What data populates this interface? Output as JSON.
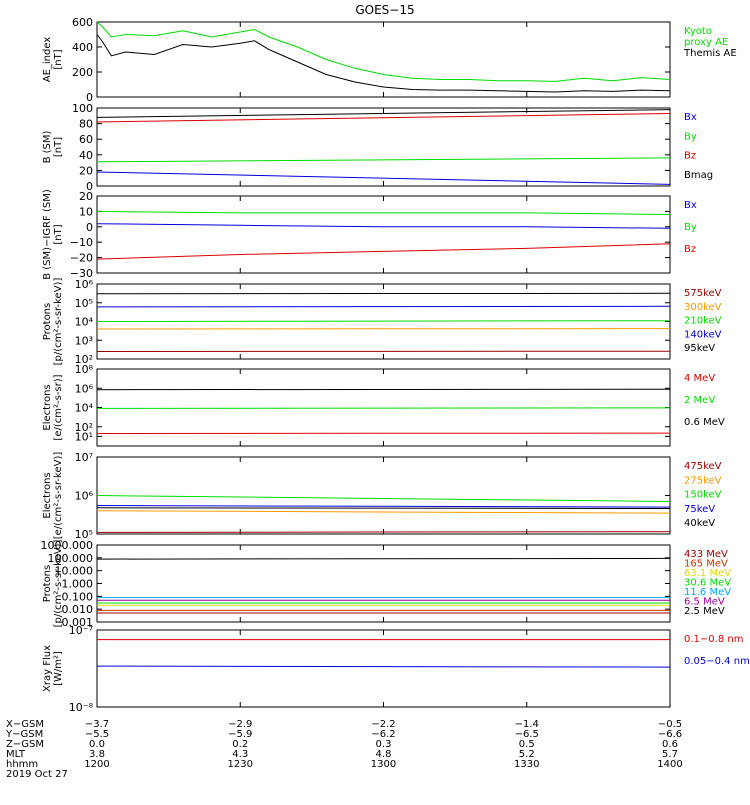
{
  "title": "GOES−15",
  "colors": {
    "black": "#000000",
    "green": "#00dd00",
    "red": "#dd0000",
    "blue": "#0000dd",
    "orange": "#ff9900",
    "yellow": "#dddd00",
    "cyan": "#00aaff",
    "purple": "#990099",
    "darkred": "#990000",
    "brown": "#cc3300"
  },
  "chart_data": [
    {
      "type": "line",
      "ylabel": "AE_index\n[nT]",
      "yscale": "linear",
      "ylim": [
        0,
        600
      ],
      "yticks": [
        "0",
        "200",
        "400",
        "600"
      ],
      "yticks_values": [
        0,
        200,
        400,
        600
      ],
      "series": [
        {
          "name": "Kyoto\nproxy AE",
          "color": "green",
          "x": [
            0,
            2,
            5,
            10,
            20,
            30,
            40,
            50,
            55,
            60,
            70,
            80,
            90,
            100,
            110,
            120,
            130,
            140,
            150,
            160,
            170,
            180,
            190,
            200
          ],
          "y": [
            600,
            560,
            480,
            500,
            490,
            530,
            480,
            520,
            540,
            480,
            400,
            300,
            230,
            180,
            150,
            140,
            140,
            130,
            130,
            125,
            150,
            130,
            155,
            140
          ]
        },
        {
          "name": "Themis AE",
          "color": "black",
          "x": [
            0,
            2,
            5,
            10,
            20,
            30,
            40,
            50,
            55,
            60,
            70,
            80,
            90,
            100,
            110,
            120,
            130,
            140,
            150,
            160,
            170,
            180,
            190,
            200
          ],
          "y": [
            500,
            440,
            330,
            360,
            340,
            420,
            400,
            430,
            450,
            380,
            280,
            180,
            120,
            80,
            60,
            55,
            55,
            50,
            45,
            40,
            50,
            45,
            55,
            50
          ]
        }
      ]
    },
    {
      "type": "line",
      "ylabel": "B (SM)\n[nT]",
      "yscale": "linear",
      "ylim": [
        0,
        100
      ],
      "yticks": [
        "0",
        "20",
        "40",
        "60",
        "80",
        "100"
      ],
      "yticks_values": [
        0,
        20,
        40,
        60,
        80,
        100
      ],
      "series": [
        {
          "name": "Bx",
          "color": "blue",
          "x": [
            0,
            200
          ],
          "y": [
            18,
            2
          ]
        },
        {
          "name": "By",
          "color": "green",
          "x": [
            0,
            200
          ],
          "y": [
            31,
            36
          ]
        },
        {
          "name": "Bz",
          "color": "red",
          "x": [
            0,
            200
          ],
          "y": [
            82,
            93
          ]
        },
        {
          "name": "Bmag",
          "color": "black",
          "x": [
            0,
            200
          ],
          "y": [
            88,
            98
          ]
        }
      ]
    },
    {
      "type": "line",
      "ylabel": "B (SM)−IGRF (SM)\n[nT]",
      "yscale": "linear",
      "ylim": [
        -30,
        20
      ],
      "yticks": [
        "−30",
        "−20",
        "−10",
        "0",
        "10",
        "20"
      ],
      "yticks_values": [
        -30,
        -20,
        -10,
        0,
        10,
        20
      ],
      "series": [
        {
          "name": "Bx",
          "color": "blue",
          "x": [
            0,
            50,
            100,
            150,
            200
          ],
          "y": [
            2,
            1,
            0,
            0,
            -1
          ]
        },
        {
          "name": "By",
          "color": "green",
          "x": [
            0,
            50,
            100,
            150,
            200
          ],
          "y": [
            10,
            9,
            9,
            9,
            8
          ]
        },
        {
          "name": "Bz",
          "color": "red",
          "x": [
            0,
            50,
            100,
            150,
            200
          ],
          "y": [
            -21,
            -18,
            -16,
            -14,
            -11
          ]
        }
      ]
    },
    {
      "type": "line",
      "ylabel": "Protons\n[p/(cm²-s-sr-keV)]",
      "yscale": "log",
      "ylim": [
        100,
        1000000
      ],
      "yticks": [
        "10²",
        "10³",
        "10⁴",
        "10⁵",
        "10⁶"
      ],
      "yticks_values": [
        100,
        1000,
        10000,
        100000,
        1000000
      ],
      "series": [
        {
          "name": "575keV",
          "color": "darkred",
          "x": [
            0,
            200
          ],
          "y": [
            250,
            260
          ]
        },
        {
          "name": "300keV",
          "color": "orange",
          "x": [
            0,
            200
          ],
          "y": [
            4000,
            4200
          ]
        },
        {
          "name": "210keV",
          "color": "green",
          "x": [
            0,
            200
          ],
          "y": [
            10000,
            11000
          ]
        },
        {
          "name": "140keV",
          "color": "blue",
          "x": [
            0,
            200
          ],
          "y": [
            60000,
            65000
          ]
        },
        {
          "name": "95keV",
          "color": "black",
          "x": [
            0,
            200
          ],
          "y": [
            300000,
            320000
          ]
        }
      ]
    },
    {
      "type": "line",
      "ylabel": "Electrons\n[e/(cm²-s-sr)]",
      "yscale": "log",
      "ylim": [
        1,
        100000000
      ],
      "yticks": [
        "10¹",
        "10²",
        "10⁴",
        "10⁶",
        "10⁸"
      ],
      "yticks_values": [
        10,
        100,
        10000,
        1000000,
        100000000
      ],
      "series": [
        {
          "name": "4 MeV",
          "color": "red",
          "x": [
            0,
            200
          ],
          "y": [
            20,
            22
          ]
        },
        {
          "name": "2 MeV",
          "color": "green",
          "x": [
            0,
            200
          ],
          "y": [
            8000,
            9000
          ]
        },
        {
          "name": "0.6 MeV",
          "color": "black",
          "x": [
            0,
            200
          ],
          "y": [
            700000,
            800000
          ]
        }
      ]
    },
    {
      "type": "line",
      "ylabel": "Electrons\n[e/(cm²-s-sr-keV)]",
      "yscale": "log",
      "ylim": [
        100000,
        10000000
      ],
      "yticks": [
        "10⁵",
        "10⁶",
        "10⁷"
      ],
      "yticks_values": [
        100000,
        1000000,
        10000000
      ],
      "series": [
        {
          "name": "475keV",
          "color": "darkred",
          "x": [
            0,
            200
          ],
          "y": [
            110000,
            115000
          ]
        },
        {
          "name": "275keV",
          "color": "orange",
          "x": [
            0,
            200
          ],
          "y": [
            400000,
            350000
          ]
        },
        {
          "name": "150keV",
          "color": "green",
          "x": [
            0,
            200
          ],
          "y": [
            1000000,
            700000
          ]
        },
        {
          "name": "75keV",
          "color": "blue",
          "x": [
            0,
            200
          ],
          "y": [
            550000,
            500000
          ]
        },
        {
          "name": "40keV",
          "color": "black",
          "x": [
            0,
            200
          ],
          "y": [
            480000,
            460000
          ]
        }
      ]
    },
    {
      "type": "line",
      "ylabel": "Protons\n[p/(cm²-s-sr-keV)]",
      "yscale": "log",
      "ylim": [
        0.001,
        1000
      ],
      "yticks": [
        "0.001",
        "0.010",
        "0.100",
        "1.000",
        "10.000",
        "100.000",
        "1000.000"
      ],
      "yticks_values": [
        0.001,
        0.01,
        0.1,
        1,
        10,
        100,
        1000
      ],
      "series": [
        {
          "name": "433 MeV",
          "color": "darkred",
          "x": [
            0,
            200
          ],
          "y": [
            0.005,
            0.005
          ]
        },
        {
          "name": "165 MeV",
          "color": "brown",
          "x": [
            0,
            200
          ],
          "y": [
            0.008,
            0.008
          ]
        },
        {
          "name": "63.1 MeV",
          "color": "yellow",
          "x": [
            0,
            200
          ],
          "y": [
            0.02,
            0.02
          ]
        },
        {
          "name": "30.6 MeV",
          "color": "green",
          "x": [
            0,
            200
          ],
          "y": [
            0.03,
            0.03
          ]
        },
        {
          "name": "11.6 MeV",
          "color": "cyan",
          "x": [
            0,
            200
          ],
          "y": [
            0.08,
            0.08
          ]
        },
        {
          "name": "6.5 MeV",
          "color": "purple",
          "x": [
            0,
            200
          ],
          "y": [
            0.05,
            0.05
          ]
        },
        {
          "name": "2.5 MeV",
          "color": "black",
          "x": [
            0,
            200
          ],
          "y": [
            80,
            90
          ]
        }
      ]
    },
    {
      "type": "line",
      "ylabel": "Xray Flux\n[W/m²]",
      "yscale": "log",
      "ylim": [
        1e-08,
        1e-07
      ],
      "yticks": [
        "10⁻⁸",
        "10⁻⁷"
      ],
      "yticks_values": [
        1e-08,
        1e-07
      ],
      "series": [
        {
          "name": "0.1−0.8 nm",
          "color": "red",
          "x": [
            0,
            200
          ],
          "y": [
            7.5e-08,
            7.5e-08
          ]
        },
        {
          "name": "0.05−0.4 nm",
          "color": "blue",
          "x": [
            0,
            200
          ],
          "y": [
            3.4e-08,
            3.3e-08
          ]
        }
      ]
    }
  ],
  "x_axis": {
    "row_labels": [
      "X−GSM",
      "Y−GSM",
      "Z−GSM",
      "MLT",
      "hhmm",
      "2019 Oct 27"
    ],
    "ticks": [
      {
        "x": 0,
        "values": [
          "−3.7",
          "−5.5",
          "0.0",
          "3.8",
          "1200"
        ]
      },
      {
        "x": 50,
        "values": [
          "−2.9",
          "−5.9",
          "0.2",
          "4.3",
          "1230"
        ]
      },
      {
        "x": 100,
        "values": [
          "−2.2",
          "−6.2",
          "0.3",
          "4.8",
          "1300"
        ]
      },
      {
        "x": 150,
        "values": [
          "−1.4",
          "−6.5",
          "0.5",
          "5.2",
          "1330"
        ]
      },
      {
        "x": 200,
        "values": [
          "−0.5",
          "−6.6",
          "0.6",
          "5.7",
          "1400"
        ]
      }
    ]
  }
}
